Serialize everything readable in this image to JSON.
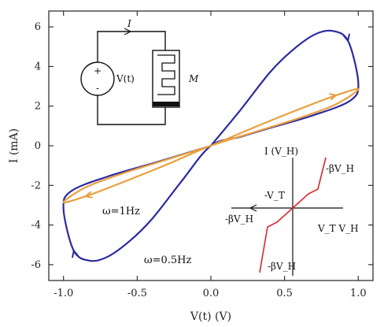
{
  "chart_data": {
    "type": "line",
    "xlabel": "V(t) (V)",
    "ylabel": "I (mA)",
    "xlim": [
      -1.1,
      1.1
    ],
    "ylim": [
      -6.8,
      6.8
    ],
    "xticks": [
      -1.0,
      -0.5,
      0.0,
      0.5,
      1.0
    ],
    "xtick_labels": [
      "-1.0",
      "-0.5",
      "0.0",
      "0.5",
      "1.0"
    ],
    "yticks": [
      -6,
      -4,
      -2,
      0,
      2,
      4,
      6
    ],
    "ytick_labels": [
      "-6",
      "-4",
      "-2",
      "0",
      "2",
      "4",
      "6"
    ],
    "series": [
      {
        "name": "ω=0.5Hz",
        "color": "#2b2aa0",
        "x": [
          0.0,
          0.2,
          0.4,
          0.55,
          0.7,
          0.82,
          0.93,
          1.0,
          0.95,
          0.7,
          0.4,
          0.2,
          0.0,
          -0.2,
          -0.4,
          -0.55,
          -0.7,
          -0.82,
          -0.93,
          -1.0,
          -0.95,
          -0.7,
          -0.4,
          -0.2,
          0.0
        ],
        "y": [
          0.0,
          1.8,
          3.7,
          4.8,
          5.6,
          5.8,
          5.3,
          3.2,
          2.3,
          1.55,
          0.9,
          0.45,
          0.0,
          -1.8,
          -3.7,
          -4.8,
          -5.6,
          -5.8,
          -5.3,
          -3.2,
          -2.3,
          -1.55,
          -0.9,
          -0.45,
          0.0
        ]
      },
      {
        "name": "ω=1Hz",
        "color": "#e8a040",
        "x": [
          0.0,
          0.3,
          0.6,
          0.85,
          1.0,
          0.85,
          0.6,
          0.3,
          0.0,
          -0.3,
          -0.6,
          -0.85,
          -1.0,
          -0.85,
          -0.6,
          -0.3,
          0.0
        ],
        "y": [
          0.0,
          0.95,
          1.85,
          2.55,
          2.85,
          2.1,
          1.4,
          0.7,
          0.0,
          -0.95,
          -1.85,
          -2.55,
          -2.85,
          -2.1,
          -1.4,
          -0.7,
          0.0
        ]
      }
    ],
    "annotations": [
      {
        "text": "ω=1Hz",
        "x": -0.97,
        "y": -3.3
      },
      {
        "text": "ω=0.5Hz",
        "x": -0.5,
        "y": -5.8
      }
    ],
    "circuit": {
      "current_label": "I",
      "source_label": "V(t)",
      "plus": "+",
      "minus": "-",
      "device_label": "M"
    },
    "inset": {
      "ylabel": "I (V_H)",
      "xlabel": "V_T V_H",
      "xlabel_right": "V_T",
      "labels": [
        "-βV_H",
        "-V_T",
        "-βV_H",
        "-βV_H"
      ]
    },
    "grid": false
  }
}
